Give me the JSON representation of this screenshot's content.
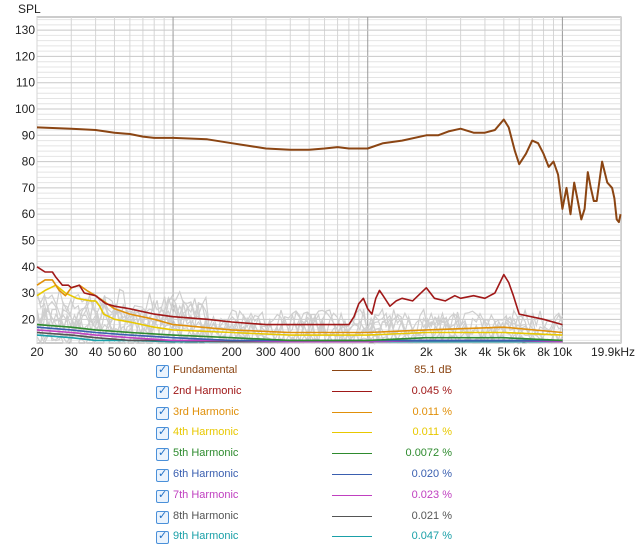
{
  "chart_data": {
    "type": "line",
    "ylabel": "SPL",
    "xlim": [
      20,
      20000
    ],
    "ylim": [
      11,
      135
    ],
    "x_scale": "log",
    "grid": true,
    "x_ticks": [
      {
        "value": 20,
        "label": "20"
      },
      {
        "value": 30,
        "label": "30"
      },
      {
        "value": 40,
        "label": "40"
      },
      {
        "value": 50,
        "label": "50"
      },
      {
        "value": 60,
        "label": "60"
      },
      {
        "value": 80,
        "label": "80"
      },
      {
        "value": 100,
        "label": "100"
      },
      {
        "value": 200,
        "label": "200"
      },
      {
        "value": 300,
        "label": "300"
      },
      {
        "value": 400,
        "label": "400"
      },
      {
        "value": 600,
        "label": "600"
      },
      {
        "value": 800,
        "label": "800"
      },
      {
        "value": 1000,
        "label": "1k"
      },
      {
        "value": 2000,
        "label": "2k"
      },
      {
        "value": 3000,
        "label": "3k"
      },
      {
        "value": 4000,
        "label": "4k"
      },
      {
        "value": 5000,
        "label": "5k"
      },
      {
        "value": 6000,
        "label": "6k"
      },
      {
        "value": 8000,
        "label": "8k"
      },
      {
        "value": 10000,
        "label": "10k"
      },
      {
        "value": 19900,
        "label": "19.9kHz"
      }
    ],
    "y_ticks": [
      20,
      30,
      40,
      50,
      60,
      70,
      80,
      90,
      100,
      110,
      120,
      130
    ],
    "series": [
      {
        "name": "Fundamental",
        "color": "#8b4513",
        "value": "85.1 dB",
        "points": [
          [
            20,
            93
          ],
          [
            30,
            92.5
          ],
          [
            40,
            92
          ],
          [
            50,
            91
          ],
          [
            60,
            90.5
          ],
          [
            70,
            89.5
          ],
          [
            80,
            89
          ],
          [
            100,
            89
          ],
          [
            150,
            88.5
          ],
          [
            200,
            87
          ],
          [
            300,
            85
          ],
          [
            400,
            84.5
          ],
          [
            500,
            84.5
          ],
          [
            600,
            85
          ],
          [
            700,
            85.5
          ],
          [
            800,
            85
          ],
          [
            1000,
            85
          ],
          [
            1200,
            87
          ],
          [
            1500,
            88
          ],
          [
            2000,
            90
          ],
          [
            2300,
            90
          ],
          [
            2600,
            91.5
          ],
          [
            3000,
            92.5
          ],
          [
            3500,
            91
          ],
          [
            4000,
            91
          ],
          [
            4500,
            92
          ],
          [
            5000,
            96
          ],
          [
            5300,
            93
          ],
          [
            5700,
            84
          ],
          [
            6000,
            79
          ],
          [
            6500,
            83
          ],
          [
            7000,
            88
          ],
          [
            7500,
            87
          ],
          [
            8000,
            83
          ],
          [
            8500,
            78
          ],
          [
            9000,
            80
          ],
          [
            9500,
            75
          ],
          [
            10000,
            62
          ],
          [
            10500,
            70
          ],
          [
            11000,
            60
          ],
          [
            11500,
            72
          ],
          [
            12000,
            65
          ],
          [
            12500,
            58
          ],
          [
            13000,
            62
          ],
          [
            13500,
            76
          ],
          [
            14000,
            70
          ],
          [
            14500,
            65
          ],
          [
            15000,
            65
          ],
          [
            16000,
            80
          ],
          [
            17000,
            72
          ],
          [
            18000,
            70
          ],
          [
            18500,
            66
          ],
          [
            19000,
            58
          ],
          [
            19500,
            57
          ],
          [
            19900,
            60
          ]
        ]
      },
      {
        "name": "2nd Harmonic",
        "color": "#a01818",
        "value": "0.045 %",
        "points": [
          [
            20,
            40
          ],
          [
            22,
            38
          ],
          [
            24,
            38
          ],
          [
            25,
            36
          ],
          [
            27,
            33
          ],
          [
            29,
            33
          ],
          [
            30,
            32
          ],
          [
            33,
            33
          ],
          [
            35,
            30
          ],
          [
            40,
            29
          ],
          [
            45,
            26
          ],
          [
            50,
            25
          ],
          [
            60,
            24
          ],
          [
            80,
            22
          ],
          [
            100,
            21
          ],
          [
            150,
            20
          ],
          [
            200,
            19
          ],
          [
            300,
            18
          ],
          [
            400,
            18
          ],
          [
            600,
            18
          ],
          [
            800,
            18
          ],
          [
            850,
            21
          ],
          [
            900,
            26
          ],
          [
            950,
            28
          ],
          [
            1000,
            24
          ],
          [
            1050,
            22
          ],
          [
            1100,
            28
          ],
          [
            1150,
            31
          ],
          [
            1200,
            29
          ],
          [
            1300,
            25
          ],
          [
            1400,
            27
          ],
          [
            1500,
            28
          ],
          [
            1700,
            27
          ],
          [
            2000,
            32
          ],
          [
            2200,
            28
          ],
          [
            2500,
            27
          ],
          [
            2800,
            29
          ],
          [
            3000,
            28
          ],
          [
            3500,
            29
          ],
          [
            4000,
            28
          ],
          [
            4500,
            30
          ],
          [
            5000,
            37
          ],
          [
            5300,
            34
          ],
          [
            5600,
            29
          ],
          [
            6000,
            22
          ],
          [
            8000,
            20
          ],
          [
            10000,
            18
          ]
        ]
      },
      {
        "name": "3rd Harmonic",
        "color": "#e0900a",
        "value": "0.011 %",
        "points": [
          [
            20,
            33
          ],
          [
            22,
            35
          ],
          [
            24,
            35
          ],
          [
            26,
            31
          ],
          [
            28,
            29
          ],
          [
            30,
            32
          ],
          [
            33,
            33
          ],
          [
            36,
            31
          ],
          [
            40,
            29
          ],
          [
            50,
            24
          ],
          [
            60,
            22
          ],
          [
            80,
            20
          ],
          [
            100,
            18
          ],
          [
            200,
            16
          ],
          [
            400,
            15
          ],
          [
            1000,
            15
          ],
          [
            2000,
            16
          ],
          [
            5000,
            17
          ],
          [
            10000,
            15
          ]
        ]
      },
      {
        "name": "4th Harmonic",
        "color": "#e8c800",
        "value": "0.011 %",
        "points": [
          [
            20,
            29
          ],
          [
            22,
            31
          ],
          [
            25,
            33
          ],
          [
            28,
            30
          ],
          [
            32,
            28
          ],
          [
            38,
            27
          ],
          [
            40,
            27
          ],
          [
            42,
            25
          ],
          [
            44,
            22
          ],
          [
            50,
            20
          ],
          [
            60,
            19
          ],
          [
            80,
            17
          ],
          [
            100,
            16
          ],
          [
            200,
            15
          ],
          [
            400,
            14
          ],
          [
            1000,
            14
          ],
          [
            2000,
            15
          ],
          [
            5000,
            15
          ],
          [
            10000,
            14
          ]
        ]
      },
      {
        "name": "5th Harmonic",
        "color": "#2e8b2e",
        "value": "0.0072 %",
        "points": [
          [
            20,
            18
          ],
          [
            30,
            17
          ],
          [
            40,
            16
          ],
          [
            60,
            15
          ],
          [
            100,
            14
          ],
          [
            200,
            13
          ],
          [
            400,
            12
          ],
          [
            1000,
            12
          ],
          [
            2000,
            13
          ],
          [
            5000,
            13
          ],
          [
            10000,
            12
          ]
        ]
      },
      {
        "name": "6th Harmonic",
        "color": "#3a5fb0",
        "value": "0.020 %",
        "points": [
          [
            20,
            17
          ],
          [
            30,
            16
          ],
          [
            40,
            15
          ],
          [
            60,
            14
          ],
          [
            100,
            13
          ],
          [
            200,
            12
          ],
          [
            400,
            12
          ],
          [
            1000,
            12
          ],
          [
            2000,
            12
          ],
          [
            5000,
            12
          ],
          [
            10000,
            12
          ]
        ]
      },
      {
        "name": "7th Harmonic",
        "color": "#c040c0",
        "value": "0.023 %",
        "points": [
          [
            20,
            16
          ],
          [
            30,
            15
          ],
          [
            40,
            14
          ],
          [
            60,
            13
          ],
          [
            100,
            12
          ],
          [
            200,
            12
          ],
          [
            400,
            11.5
          ],
          [
            1000,
            11.5
          ],
          [
            2000,
            12
          ],
          [
            5000,
            12
          ],
          [
            10000,
            11.5
          ]
        ]
      },
      {
        "name": "8th Harmonic",
        "color": "#555555",
        "value": "0.021 %",
        "points": [
          [
            20,
            15
          ],
          [
            30,
            14
          ],
          [
            40,
            13
          ],
          [
            60,
            12
          ],
          [
            100,
            12
          ],
          [
            200,
            11.5
          ],
          [
            400,
            11.5
          ],
          [
            1000,
            11.5
          ],
          [
            2000,
            12
          ],
          [
            5000,
            12
          ],
          [
            10000,
            11.5
          ]
        ]
      },
      {
        "name": "9th Harmonic",
        "color": "#1aa0a8",
        "value": "0.047 %",
        "points": [
          [
            20,
            14
          ],
          [
            30,
            13
          ],
          [
            40,
            12
          ],
          [
            60,
            12
          ],
          [
            100,
            11.5
          ],
          [
            200,
            11.5
          ],
          [
            400,
            11.5
          ],
          [
            1000,
            11.5
          ],
          [
            2000,
            11.5
          ],
          [
            5000,
            11.5
          ],
          [
            10000,
            11.5
          ]
        ]
      }
    ]
  },
  "legend": [
    {
      "label": "Fundamental",
      "value": "85.1 dB",
      "color": "#8b4513",
      "checked": true
    },
    {
      "label": "2nd Harmonic",
      "value": "0.045 %",
      "color": "#a01818",
      "checked": true
    },
    {
      "label": "3rd Harmonic",
      "value": "0.011 %",
      "color": "#e0900a",
      "checked": true
    },
    {
      "label": "4th Harmonic",
      "value": "0.011 %",
      "color": "#e8c800",
      "checked": true
    },
    {
      "label": "5th Harmonic",
      "value": "0.0072 %",
      "color": "#2e8b2e",
      "checked": true
    },
    {
      "label": "6th Harmonic",
      "value": "0.020 %",
      "color": "#3a5fb0",
      "checked": true
    },
    {
      "label": "7th Harmonic",
      "value": "0.023 %",
      "color": "#c040c0",
      "checked": true
    },
    {
      "label": "8th Harmonic",
      "value": "0.021 %",
      "color": "#555555",
      "checked": true
    },
    {
      "label": "9th Harmonic",
      "value": "0.047 %",
      "color": "#1aa0a8",
      "checked": true
    }
  ]
}
